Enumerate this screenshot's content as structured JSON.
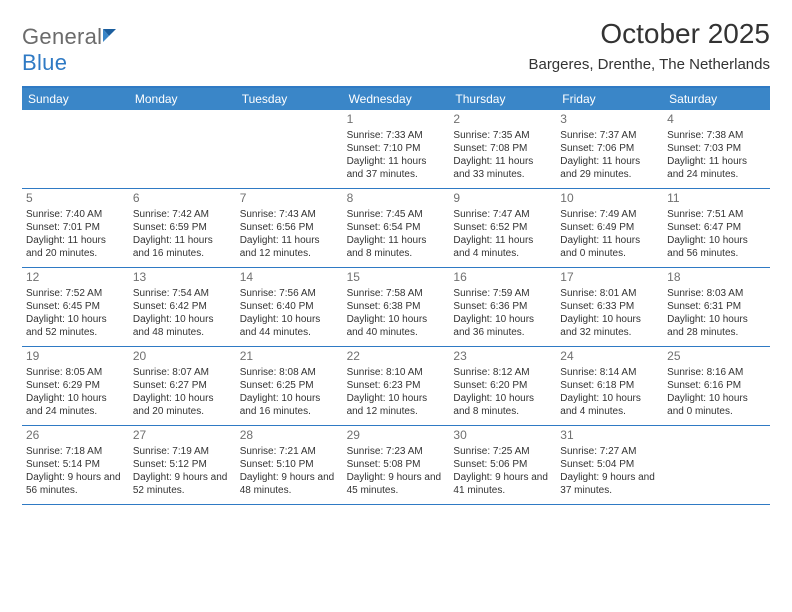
{
  "brand": {
    "name_a": "General",
    "name_b": "Blue"
  },
  "title": "October 2025",
  "location": "Bargeres, Drenthe, The Netherlands",
  "colors": {
    "header_bg": "#3a86c8",
    "border": "#2f7ac4",
    "text": "#333333",
    "logo_gray": "#6b6b6b",
    "logo_blue": "#2f7ac4",
    "daynum": "#707070"
  },
  "day_names": [
    "Sunday",
    "Monday",
    "Tuesday",
    "Wednesday",
    "Thursday",
    "Friday",
    "Saturday"
  ],
  "weeks": [
    [
      {
        "n": "",
        "sr": "",
        "ss": "",
        "dl": ""
      },
      {
        "n": "",
        "sr": "",
        "ss": "",
        "dl": ""
      },
      {
        "n": "",
        "sr": "",
        "ss": "",
        "dl": ""
      },
      {
        "n": "1",
        "sr": "Sunrise: 7:33 AM",
        "ss": "Sunset: 7:10 PM",
        "dl": "Daylight: 11 hours and 37 minutes."
      },
      {
        "n": "2",
        "sr": "Sunrise: 7:35 AM",
        "ss": "Sunset: 7:08 PM",
        "dl": "Daylight: 11 hours and 33 minutes."
      },
      {
        "n": "3",
        "sr": "Sunrise: 7:37 AM",
        "ss": "Sunset: 7:06 PM",
        "dl": "Daylight: 11 hours and 29 minutes."
      },
      {
        "n": "4",
        "sr": "Sunrise: 7:38 AM",
        "ss": "Sunset: 7:03 PM",
        "dl": "Daylight: 11 hours and 24 minutes."
      }
    ],
    [
      {
        "n": "5",
        "sr": "Sunrise: 7:40 AM",
        "ss": "Sunset: 7:01 PM",
        "dl": "Daylight: 11 hours and 20 minutes."
      },
      {
        "n": "6",
        "sr": "Sunrise: 7:42 AM",
        "ss": "Sunset: 6:59 PM",
        "dl": "Daylight: 11 hours and 16 minutes."
      },
      {
        "n": "7",
        "sr": "Sunrise: 7:43 AM",
        "ss": "Sunset: 6:56 PM",
        "dl": "Daylight: 11 hours and 12 minutes."
      },
      {
        "n": "8",
        "sr": "Sunrise: 7:45 AM",
        "ss": "Sunset: 6:54 PM",
        "dl": "Daylight: 11 hours and 8 minutes."
      },
      {
        "n": "9",
        "sr": "Sunrise: 7:47 AM",
        "ss": "Sunset: 6:52 PM",
        "dl": "Daylight: 11 hours and 4 minutes."
      },
      {
        "n": "10",
        "sr": "Sunrise: 7:49 AM",
        "ss": "Sunset: 6:49 PM",
        "dl": "Daylight: 11 hours and 0 minutes."
      },
      {
        "n": "11",
        "sr": "Sunrise: 7:51 AM",
        "ss": "Sunset: 6:47 PM",
        "dl": "Daylight: 10 hours and 56 minutes."
      }
    ],
    [
      {
        "n": "12",
        "sr": "Sunrise: 7:52 AM",
        "ss": "Sunset: 6:45 PM",
        "dl": "Daylight: 10 hours and 52 minutes."
      },
      {
        "n": "13",
        "sr": "Sunrise: 7:54 AM",
        "ss": "Sunset: 6:42 PM",
        "dl": "Daylight: 10 hours and 48 minutes."
      },
      {
        "n": "14",
        "sr": "Sunrise: 7:56 AM",
        "ss": "Sunset: 6:40 PM",
        "dl": "Daylight: 10 hours and 44 minutes."
      },
      {
        "n": "15",
        "sr": "Sunrise: 7:58 AM",
        "ss": "Sunset: 6:38 PM",
        "dl": "Daylight: 10 hours and 40 minutes."
      },
      {
        "n": "16",
        "sr": "Sunrise: 7:59 AM",
        "ss": "Sunset: 6:36 PM",
        "dl": "Daylight: 10 hours and 36 minutes."
      },
      {
        "n": "17",
        "sr": "Sunrise: 8:01 AM",
        "ss": "Sunset: 6:33 PM",
        "dl": "Daylight: 10 hours and 32 minutes."
      },
      {
        "n": "18",
        "sr": "Sunrise: 8:03 AM",
        "ss": "Sunset: 6:31 PM",
        "dl": "Daylight: 10 hours and 28 minutes."
      }
    ],
    [
      {
        "n": "19",
        "sr": "Sunrise: 8:05 AM",
        "ss": "Sunset: 6:29 PM",
        "dl": "Daylight: 10 hours and 24 minutes."
      },
      {
        "n": "20",
        "sr": "Sunrise: 8:07 AM",
        "ss": "Sunset: 6:27 PM",
        "dl": "Daylight: 10 hours and 20 minutes."
      },
      {
        "n": "21",
        "sr": "Sunrise: 8:08 AM",
        "ss": "Sunset: 6:25 PM",
        "dl": "Daylight: 10 hours and 16 minutes."
      },
      {
        "n": "22",
        "sr": "Sunrise: 8:10 AM",
        "ss": "Sunset: 6:23 PM",
        "dl": "Daylight: 10 hours and 12 minutes."
      },
      {
        "n": "23",
        "sr": "Sunrise: 8:12 AM",
        "ss": "Sunset: 6:20 PM",
        "dl": "Daylight: 10 hours and 8 minutes."
      },
      {
        "n": "24",
        "sr": "Sunrise: 8:14 AM",
        "ss": "Sunset: 6:18 PM",
        "dl": "Daylight: 10 hours and 4 minutes."
      },
      {
        "n": "25",
        "sr": "Sunrise: 8:16 AM",
        "ss": "Sunset: 6:16 PM",
        "dl": "Daylight: 10 hours and 0 minutes."
      }
    ],
    [
      {
        "n": "26",
        "sr": "Sunrise: 7:18 AM",
        "ss": "Sunset: 5:14 PM",
        "dl": "Daylight: 9 hours and 56 minutes."
      },
      {
        "n": "27",
        "sr": "Sunrise: 7:19 AM",
        "ss": "Sunset: 5:12 PM",
        "dl": "Daylight: 9 hours and 52 minutes."
      },
      {
        "n": "28",
        "sr": "Sunrise: 7:21 AM",
        "ss": "Sunset: 5:10 PM",
        "dl": "Daylight: 9 hours and 48 minutes."
      },
      {
        "n": "29",
        "sr": "Sunrise: 7:23 AM",
        "ss": "Sunset: 5:08 PM",
        "dl": "Daylight: 9 hours and 45 minutes."
      },
      {
        "n": "30",
        "sr": "Sunrise: 7:25 AM",
        "ss": "Sunset: 5:06 PM",
        "dl": "Daylight: 9 hours and 41 minutes."
      },
      {
        "n": "31",
        "sr": "Sunrise: 7:27 AM",
        "ss": "Sunset: 5:04 PM",
        "dl": "Daylight: 9 hours and 37 minutes."
      },
      {
        "n": "",
        "sr": "",
        "ss": "",
        "dl": ""
      }
    ]
  ]
}
